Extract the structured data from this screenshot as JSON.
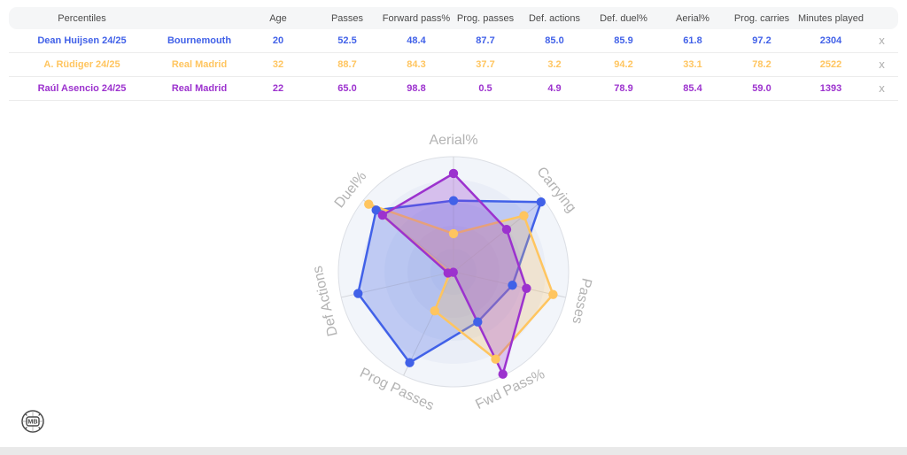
{
  "table": {
    "header": [
      "Percentiles",
      "",
      "Age",
      "Passes",
      "Forward pass%",
      "Prog. passes",
      "Def. actions",
      "Def. duel%",
      "Aerial%",
      "Prog. carries",
      "Minutes played",
      ""
    ],
    "rows": [
      {
        "player": "Dean Huijsen 24/25",
        "team": "Bournemouth",
        "color": "#4161E8",
        "cells": [
          "20",
          "52.5",
          "48.4",
          "87.7",
          "85.0",
          "85.9",
          "61.8",
          "97.2",
          "2304"
        ],
        "remove_label": "x"
      },
      {
        "player": "A. Rüdiger 24/25",
        "team": "Real Madrid",
        "color": "#FFC55F",
        "cells": [
          "32",
          "88.7",
          "84.3",
          "37.7",
          "3.2",
          "94.2",
          "33.1",
          "78.2",
          "2522"
        ],
        "remove_label": "x"
      },
      {
        "player": "Raúl Asencio 24/25",
        "team": "Real Madrid",
        "color": "#9C32CE",
        "cells": [
          "22",
          "65.0",
          "98.8",
          "0.5",
          "4.9",
          "78.9",
          "85.4",
          "59.0",
          "1393"
        ],
        "remove_label": "x"
      }
    ]
  },
  "chart_data": {
    "type": "radar",
    "axes": [
      "Aerial%",
      "Carrying",
      "Passes",
      "Fwd Pass%",
      "Prog Passes",
      "Def Actions",
      "Duel%"
    ],
    "range": [
      0,
      100
    ],
    "grid": "circular",
    "legend_position": "none",
    "axis_label_color": "#b3b3b3",
    "fill_opacity": 0.25,
    "series": [
      {
        "name": "Dean Huijsen 24/25",
        "color": "#4161E8",
        "values": [
          61.8,
          97.2,
          52.5,
          48.4,
          87.7,
          85.0,
          85.9
        ]
      },
      {
        "name": "A. Rüdiger 24/25",
        "color": "#FFC55F",
        "values": [
          33.1,
          78.2,
          88.7,
          84.3,
          37.7,
          3.2,
          94.2
        ]
      },
      {
        "name": "Raúl Asencio 24/25",
        "color": "#9C32CE",
        "values": [
          85.4,
          59.0,
          65.0,
          98.8,
          0.5,
          4.9,
          78.9
        ]
      }
    ]
  },
  "logo": {
    "text": "MB"
  }
}
